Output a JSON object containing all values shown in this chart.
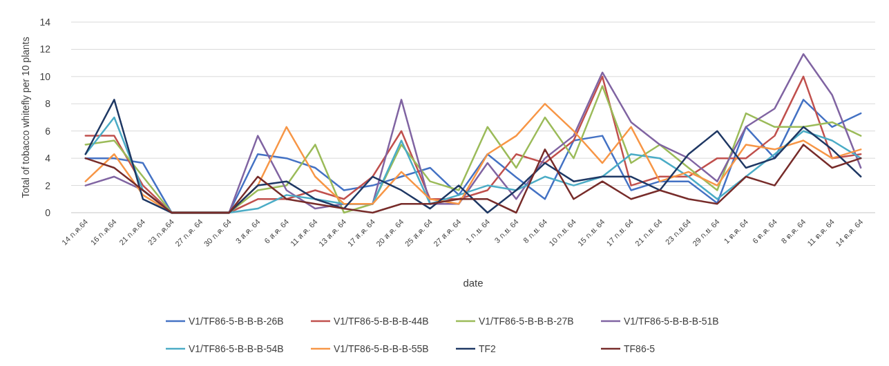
{
  "chart_data": {
    "type": "line",
    "xlabel": "date",
    "ylabel": "Total of tobacco whitefly per 10 plants",
    "categories": [
      "14 ก.ค.64",
      "16 ก.ค.64",
      "21 ก.ค.64",
      "23 ก.ค.64",
      "27 ก.ค. 64",
      "30 ก.ค. 64",
      "3 ส.ค. 64",
      "6 ส.ค. 64",
      "11 ส.ค. 64",
      "13 ส.ค. 64",
      "17 ส.ค. 64",
      "20 ส.ค. 64",
      "25 ส.ค. 64",
      "27 ส.ค. 64",
      "1 ก.ย. 64",
      "3 ก.ย. 64",
      "8 ก.ย. 64",
      "10 ก.ย. 64",
      "15 ก.ย. 64",
      "17 ก.ย. 64",
      "21 ก.ย. 64",
      "23 ก.ย.64",
      "29 ก.ย. 64",
      "1 ต.ค. 64",
      "6 ต.ค. 64",
      "8 ต.ค. 64",
      "11 ต.ค. 64",
      "14 ต.ค. 64"
    ],
    "ylim": [
      0,
      14
    ],
    "yticks": [
      0,
      2,
      4,
      6,
      8,
      10,
      12,
      14
    ],
    "grid": "y",
    "legend": "bottom",
    "marker": "none",
    "line_style": "solid",
    "series": [
      {
        "name": "V1/TF86-5-B-B-B-26B",
        "color": "#4472c4",
        "values": [
          4,
          4,
          3.65,
          0,
          0,
          0,
          4.3,
          4,
          3.3,
          1.65,
          2,
          2.65,
          3.3,
          1.3,
          4.3,
          2.6,
          1,
          5.3,
          5.65,
          1.65,
          2.3,
          2.3,
          0.7,
          6.3,
          4,
          8.3,
          6.3,
          7.3
        ]
      },
      {
        "name": "V1/TF86-5-B-B-B-44B",
        "color": "#c0504d",
        "values": [
          5.65,
          5.65,
          2,
          0,
          0,
          0,
          1,
          1,
          1.65,
          1,
          2.65,
          6,
          1,
          1,
          1.65,
          4.3,
          3.65,
          5.3,
          10,
          2,
          2.65,
          2.65,
          4,
          4,
          5.65,
          10,
          4,
          4.3
        ]
      },
      {
        "name": "V1/TF86-5-B-B-B-27B",
        "color": "#9bbb59",
        "values": [
          5,
          5.3,
          2.65,
          0,
          0,
          0,
          1.65,
          2,
          5,
          0,
          0.65,
          5,
          2.3,
          1.65,
          6.3,
          3.3,
          7,
          4,
          9.3,
          3.65,
          5,
          3.3,
          1.65,
          7.3,
          6.3,
          6.3,
          6.65,
          5.65
        ]
      },
      {
        "name": "V1/TF86-5-B-B-B-51B",
        "color": "#8064a2",
        "values": [
          2,
          2.65,
          1.65,
          0,
          0,
          0,
          5.65,
          1.65,
          0.3,
          0.65,
          0.65,
          8.3,
          0.65,
          0.65,
          3.65,
          1,
          4,
          5.65,
          10.3,
          6.65,
          5,
          4,
          2.3,
          6.3,
          7.65,
          11.65,
          8.65,
          3.3
        ]
      },
      {
        "name": "V1/TF86-5-B-B-B-54B",
        "color": "#4bacc6",
        "values": [
          4.3,
          7,
          1.65,
          0,
          0,
          0,
          0.3,
          1.3,
          1,
          0.65,
          0.65,
          5.3,
          0.65,
          1.3,
          2,
          1.65,
          2.65,
          2,
          2.65,
          4.3,
          4,
          2.65,
          1,
          2.65,
          4.3,
          6,
          5.3,
          4
        ]
      },
      {
        "name": "V1/TF86-5-B-B-B-55B",
        "color": "#f79646",
        "values": [
          2.3,
          4.3,
          1.3,
          0,
          0,
          0,
          2,
          6.3,
          2.65,
          0.65,
          0.65,
          3,
          1,
          0.65,
          4.3,
          5.65,
          8,
          6,
          3.65,
          6.3,
          2.3,
          3,
          2,
          5,
          4.65,
          5.3,
          4,
          4.65
        ]
      },
      {
        "name": "TF2",
        "color": "#1f3864",
        "values": [
          4.3,
          8.3,
          1,
          0,
          0,
          0,
          2,
          2.3,
          1,
          0.3,
          2.65,
          1.65,
          0.3,
          2,
          0,
          1.65,
          3.65,
          2.3,
          2.65,
          2.65,
          1.65,
          4.3,
          6,
          3.3,
          4,
          6.3,
          4.65,
          2.65
        ]
      },
      {
        "name": "TF86-5",
        "color": "#772c2a",
        "values": [
          4,
          3.3,
          1.65,
          0,
          0,
          0,
          2.65,
          1,
          0.65,
          0.3,
          0,
          0.65,
          0.65,
          1,
          1,
          0,
          4.65,
          1,
          2.3,
          1,
          1.65,
          1,
          0.65,
          2.65,
          2,
          5,
          3.3,
          4
        ]
      }
    ]
  }
}
